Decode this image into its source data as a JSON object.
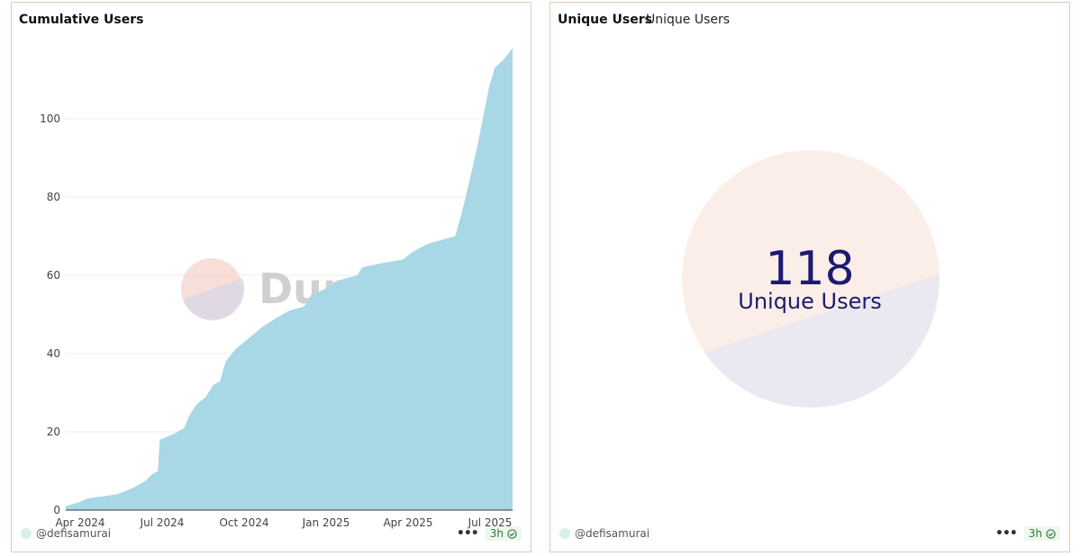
{
  "left_panel": {
    "title": "Cumulative Users",
    "author": "@defisamurai",
    "age": "3h",
    "watermark": "Dune"
  },
  "right_panel": {
    "title": "Unique Users",
    "subtitle": "Unique Users",
    "counter_value": "118",
    "counter_label": "Unique Users",
    "author": "@defisamurai",
    "age": "3h"
  },
  "colors": {
    "area_fill": "#a8d7e6",
    "counter_text": "#1d1b6e",
    "counter_top": "#fbeee9",
    "counter_bottom": "#eae8f0",
    "panel_border": "#e8c7b6"
  },
  "chart_data": {
    "type": "area",
    "title": "Cumulative Users",
    "xlabel": "",
    "ylabel": "",
    "ylim": [
      0,
      120
    ],
    "yticks": [
      0,
      20,
      40,
      60,
      80,
      100
    ],
    "xticks": [
      "Apr 2024",
      "Jul 2024",
      "Oct 2024",
      "Jan 2025",
      "Apr 2025",
      "Jul 2025"
    ],
    "xlim": [
      "2024-04-01",
      "2025-07-20"
    ],
    "grid": true,
    "series": [
      {
        "points": [
          [
            "2024-04-01",
            1
          ],
          [
            "2024-04-15",
            2
          ],
          [
            "2024-04-25",
            3
          ],
          [
            "2024-05-10",
            3.5
          ],
          [
            "2024-05-25",
            4
          ],
          [
            "2024-06-10",
            5.5
          ],
          [
            "2024-06-25",
            7.5
          ],
          [
            "2024-07-01",
            9
          ],
          [
            "2024-07-08",
            10
          ],
          [
            "2024-07-10",
            18
          ],
          [
            "2024-07-25",
            19.5
          ],
          [
            "2024-08-05",
            21
          ],
          [
            "2024-08-10",
            24
          ],
          [
            "2024-08-18",
            27
          ],
          [
            "2024-08-28",
            29
          ],
          [
            "2024-09-05",
            32
          ],
          [
            "2024-09-12",
            33
          ],
          [
            "2024-09-18",
            38
          ],
          [
            "2024-09-28",
            41
          ],
          [
            "2024-10-08",
            43
          ],
          [
            "2024-10-18",
            45
          ],
          [
            "2024-10-28",
            47
          ],
          [
            "2024-11-10",
            49
          ],
          [
            "2024-11-25",
            51
          ],
          [
            "2024-12-10",
            52
          ],
          [
            "2024-12-20",
            55
          ],
          [
            "2025-01-05",
            57
          ],
          [
            "2025-01-20",
            59
          ],
          [
            "2025-02-05",
            60
          ],
          [
            "2025-02-10",
            62
          ],
          [
            "2025-03-01",
            63
          ],
          [
            "2025-03-25",
            64
          ],
          [
            "2025-04-05",
            66
          ],
          [
            "2025-04-20",
            68
          ],
          [
            "2025-05-05",
            69
          ],
          [
            "2025-05-20",
            70
          ],
          [
            "2025-05-27",
            76
          ],
          [
            "2025-06-02",
            82
          ],
          [
            "2025-06-08",
            88
          ],
          [
            "2025-06-15",
            96
          ],
          [
            "2025-06-20",
            102
          ],
          [
            "2025-06-25",
            108
          ],
          [
            "2025-07-01",
            113
          ],
          [
            "2025-07-10",
            115
          ],
          [
            "2025-07-20",
            118
          ]
        ]
      }
    ]
  }
}
